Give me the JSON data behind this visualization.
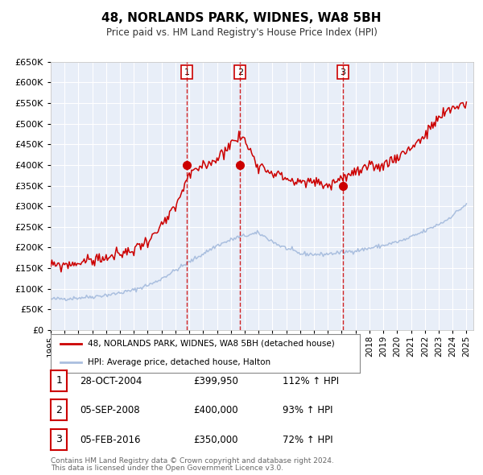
{
  "title": "48, NORLANDS PARK, WIDNES, WA8 5BH",
  "subtitle": "Price paid vs. HM Land Registry's House Price Index (HPI)",
  "plot_bg_color": "#e8eef8",
  "grid_color": "#ffffff",
  "ylim": [
    0,
    650000
  ],
  "yticks": [
    0,
    50000,
    100000,
    150000,
    200000,
    250000,
    300000,
    350000,
    400000,
    450000,
    500000,
    550000,
    600000,
    650000
  ],
  "xlim_start": 1995.0,
  "xlim_end": 2025.5,
  "hpi_color": "#aabfdf",
  "price_color": "#cc0000",
  "sale_marker_color": "#cc0000",
  "sale_line_color": "#cc0000",
  "transactions": [
    {
      "num": 1,
      "date_x": 2004.83,
      "price": 399950,
      "label": "28-OCT-2004",
      "price_str": "£399,950",
      "pct": "112%"
    },
    {
      "num": 2,
      "date_x": 2008.67,
      "price": 400000,
      "label": "05-SEP-2008",
      "price_str": "£400,000",
      "pct": "93%"
    },
    {
      "num": 3,
      "date_x": 2016.08,
      "price": 350000,
      "label": "05-FEB-2016",
      "price_str": "£350,000",
      "pct": "72%"
    }
  ],
  "legend_line1": "48, NORLANDS PARK, WIDNES, WA8 5BH (detached house)",
  "legend_line2": "HPI: Average price, detached house, Halton",
  "footer1": "Contains HM Land Registry data © Crown copyright and database right 2024.",
  "footer2": "This data is licensed under the Open Government Licence v3.0.",
  "hpi_kx": [
    0,
    0.05,
    0.1,
    0.15,
    0.2,
    0.25,
    0.3,
    0.35,
    0.4,
    0.45,
    0.5,
    0.55,
    0.6,
    0.65,
    0.7,
    0.75,
    0.8,
    0.85,
    0.9,
    0.95,
    1.0
  ],
  "hpi_ky": [
    75000,
    77000,
    81000,
    87000,
    97000,
    115000,
    145000,
    175000,
    205000,
    225000,
    235000,
    205000,
    185000,
    183000,
    188000,
    195000,
    205000,
    218000,
    240000,
    265000,
    305000
  ],
  "price_kx": [
    0,
    0.05,
    0.1,
    0.15,
    0.2,
    0.25,
    0.3,
    0.33,
    0.36,
    0.4,
    0.43,
    0.46,
    0.5,
    0.53,
    0.56,
    0.6,
    0.63,
    0.67,
    0.7,
    0.73,
    0.76,
    0.8,
    0.85,
    0.9,
    0.93,
    0.97,
    1.0
  ],
  "price_ky": [
    155000,
    160000,
    170000,
    178000,
    195000,
    230000,
    295000,
    370000,
    395000,
    415000,
    450000,
    470000,
    400000,
    385000,
    370000,
    355000,
    360000,
    350000,
    370000,
    380000,
    390000,
    400000,
    430000,
    470000,
    510000,
    540000,
    550000
  ]
}
